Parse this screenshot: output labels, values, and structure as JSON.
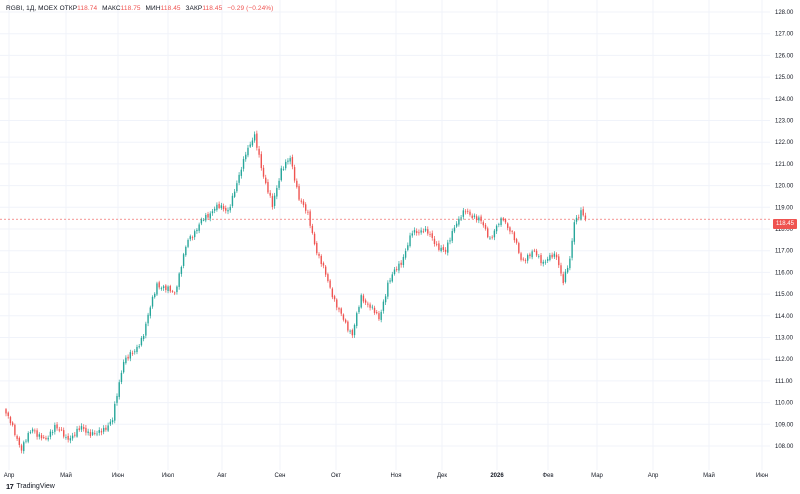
{
  "legend": {
    "symbol": "RGBI, 1Д, MOEX",
    "open_label": "ОТКР",
    "open_value": "118.74",
    "high_label": "МАКС",
    "high_value": "118.75",
    "low_label": "МИН",
    "low_value": "118.45",
    "close_label": "ЗАКР",
    "close_value": "118.45",
    "change": "−0.29 (−0.24%)"
  },
  "brand": {
    "name": "TradingView"
  },
  "colors": {
    "up": "#26a69a",
    "down": "#ef5350",
    "grid": "#f0f3fa",
    "last_line": "#ef5350"
  },
  "chart_data": {
    "type": "candlestick",
    "x_axis_labels": [
      "Апр",
      "Май",
      "Июн",
      "Июл",
      "Авг",
      "Сен",
      "Окт",
      "Ноя",
      "Дек",
      "2026",
      "Фев",
      "Мар",
      "Апр",
      "Май",
      "Июн"
    ],
    "y_ticks": [
      "108.00",
      "109.00",
      "110.00",
      "111.00",
      "112.00",
      "113.00",
      "114.00",
      "115.00",
      "116.00",
      "117.00",
      "118.00",
      "119.00",
      "120.00",
      "121.00",
      "122.00",
      "123.00",
      "124.00",
      "125.00",
      "126.00",
      "127.00",
      "128.00"
    ],
    "ylim": [
      107.5,
      128.3
    ],
    "last_price": "118.45",
    "grid": true,
    "anchors": [
      {
        "i": 0,
        "v": 109.5
      },
      {
        "i": 7,
        "v": 107.9
      },
      {
        "i": 12,
        "v": 108.8
      },
      {
        "i": 18,
        "v": 108.2
      },
      {
        "i": 22,
        "v": 109.0
      },
      {
        "i": 27,
        "v": 108.3
      },
      {
        "i": 34,
        "v": 108.8
      },
      {
        "i": 41,
        "v": 108.5
      },
      {
        "i": 48,
        "v": 109.2
      },
      {
        "i": 53,
        "v": 112.0
      },
      {
        "i": 58,
        "v": 112.3
      },
      {
        "i": 62,
        "v": 113.2
      },
      {
        "i": 68,
        "v": 115.5
      },
      {
        "i": 72,
        "v": 115.2
      },
      {
        "i": 76,
        "v": 115.1
      },
      {
        "i": 82,
        "v": 117.5
      },
      {
        "i": 88,
        "v": 118.3
      },
      {
        "i": 94,
        "v": 119.0
      },
      {
        "i": 100,
        "v": 118.9
      },
      {
        "i": 104,
        "v": 120.0
      },
      {
        "i": 108,
        "v": 121.6
      },
      {
        "i": 112,
        "v": 122.2
      },
      {
        "i": 116,
        "v": 120.5
      },
      {
        "i": 120,
        "v": 119.0
      },
      {
        "i": 124,
        "v": 120.8
      },
      {
        "i": 128,
        "v": 121.2
      },
      {
        "i": 132,
        "v": 119.5
      },
      {
        "i": 136,
        "v": 118.6
      },
      {
        "i": 140,
        "v": 117.0
      },
      {
        "i": 146,
        "v": 115.3
      },
      {
        "i": 150,
        "v": 114.2
      },
      {
        "i": 153,
        "v": 113.6
      },
      {
        "i": 156,
        "v": 113.2
      },
      {
        "i": 160,
        "v": 114.8
      },
      {
        "i": 164,
        "v": 114.5
      },
      {
        "i": 168,
        "v": 113.8
      },
      {
        "i": 172,
        "v": 115.5
      },
      {
        "i": 178,
        "v": 116.5
      },
      {
        "i": 183,
        "v": 117.8
      },
      {
        "i": 188,
        "v": 118.0
      },
      {
        "i": 194,
        "v": 117.3
      },
      {
        "i": 198,
        "v": 116.9
      },
      {
        "i": 202,
        "v": 118.2
      },
      {
        "i": 207,
        "v": 118.8
      },
      {
        "i": 211,
        "v": 118.6
      },
      {
        "i": 214,
        "v": 118.3
      },
      {
        "i": 218,
        "v": 117.6
      },
      {
        "i": 224,
        "v": 118.5
      },
      {
        "i": 228,
        "v": 117.8
      },
      {
        "i": 232,
        "v": 116.6
      },
      {
        "i": 238,
        "v": 116.9
      },
      {
        "i": 242,
        "v": 116.5
      },
      {
        "i": 248,
        "v": 116.8
      },
      {
        "i": 251,
        "v": 115.6
      },
      {
        "i": 254,
        "v": 116.5
      },
      {
        "i": 256,
        "v": 118.4
      },
      {
        "i": 259,
        "v": 118.8
      },
      {
        "i": 261,
        "v": 118.45
      }
    ]
  }
}
